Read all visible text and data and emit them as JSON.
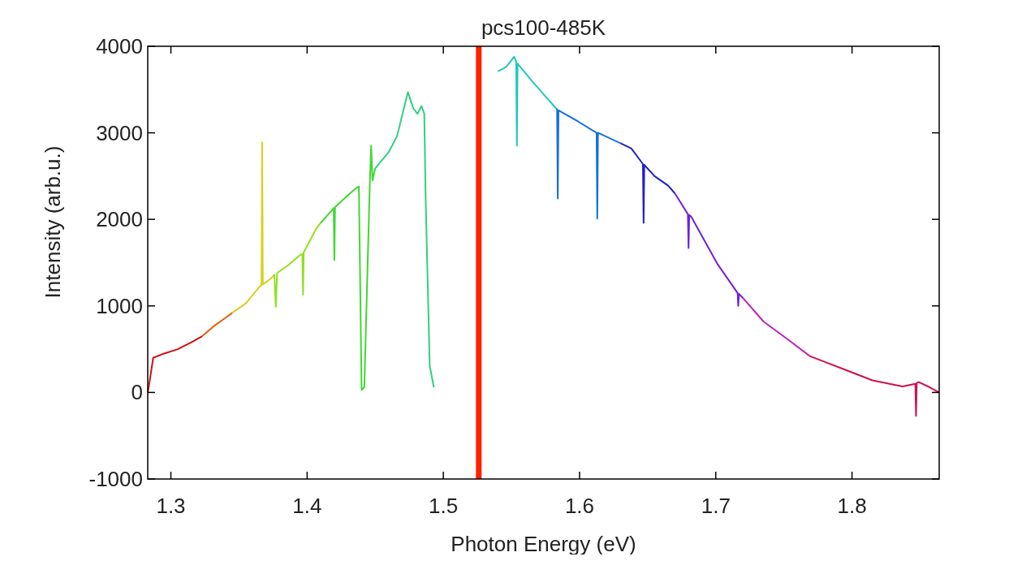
{
  "chart_data": {
    "type": "line",
    "title": "pcs100-485K",
    "xlabel": "Photon Energy (eV)",
    "ylabel": "Intensity (arb.u.)",
    "xlim": [
      1.283,
      1.864
    ],
    "xticks": [
      1.3,
      1.4,
      1.5,
      1.6,
      1.7,
      1.8
    ],
    "ylim": [
      -1000,
      4000
    ],
    "yticks": [
      -1000,
      0,
      1000,
      2000,
      3000,
      4000
    ],
    "grid": false,
    "marker": "none",
    "line_style": "solid",
    "ref_lines": [
      {
        "axis": "x",
        "value": 1.526,
        "color": "#ff2000"
      }
    ],
    "series": [
      {
        "color": "#d01010",
        "x": [
          1.283,
          1.284,
          1.287,
          1.295,
          1.305,
          1.315,
          1.323
        ],
        "values": [
          0,
          90,
          400,
          450,
          500,
          580,
          650
        ]
      },
      {
        "color": "#e06010",
        "x": [
          1.323,
          1.331,
          1.339,
          1.345
        ],
        "values": [
          650,
          760,
          850,
          920
        ]
      },
      {
        "color": "#d8d020",
        "x": [
          1.345,
          1.355,
          1.365,
          1.3665,
          1.367,
          1.3675,
          1.372,
          1.375
        ],
        "values": [
          920,
          1030,
          1220,
          1240,
          2890,
          1250,
          1300,
          1340
        ]
      },
      {
        "color": "#90e020",
        "x": [
          1.375,
          1.376,
          1.377,
          1.378,
          1.386,
          1.395,
          1.3965,
          1.397,
          1.3975,
          1.407,
          1.41
        ],
        "values": [
          1340,
          1360,
          990,
          1380,
          1470,
          1590,
          1600,
          1130,
          1620,
          1900,
          1960
        ]
      },
      {
        "color": "#40d830",
        "x": [
          1.41,
          1.419,
          1.4195,
          1.42,
          1.4205,
          1.428,
          1.435,
          1.438,
          1.44,
          1.442,
          1.446,
          1.447,
          1.448,
          1.45
        ],
        "values": [
          1960,
          2120,
          2130,
          1530,
          2140,
          2250,
          2350,
          2380,
          30,
          60,
          2400,
          2850,
          2450,
          2590
        ]
      },
      {
        "color": "#30d080",
        "x": [
          1.45,
          1.46,
          1.466,
          1.471,
          1.474,
          1.478,
          1.481,
          1.484,
          1.486,
          1.487,
          1.49,
          1.493
        ],
        "values": [
          2590,
          2780,
          2960,
          3280,
          3470,
          3280,
          3220,
          3310,
          3220,
          2250,
          310,
          60
        ]
      },
      {
        "color": "#20c8b8",
        "x": [
          1.54,
          1.546,
          1.552,
          1.5535,
          1.554,
          1.5545,
          1.565,
          1.575,
          1.583
        ],
        "values": [
          3710,
          3760,
          3880,
          3820,
          2850,
          3800,
          3600,
          3420,
          3280
        ]
      },
      {
        "color": "#1070e0",
        "x": [
          1.583,
          1.5835,
          1.584,
          1.5845,
          1.599,
          1.6125,
          1.613,
          1.6135,
          1.615,
          1.63
        ],
        "values": [
          3280,
          3270,
          2240,
          3260,
          3130,
          3000,
          2010,
          3000,
          2990,
          2880
        ]
      },
      {
        "color": "#2020c8",
        "x": [
          1.63,
          1.638,
          1.6465,
          1.647,
          1.6475,
          1.655,
          1.665,
          1.67
        ],
        "values": [
          2880,
          2820,
          2640,
          1960,
          2630,
          2500,
          2390,
          2300
        ]
      },
      {
        "color": "#7020d8",
        "x": [
          1.67,
          1.6795,
          1.68,
          1.6805,
          1.682,
          1.701,
          1.716,
          1.7165,
          1.717,
          1.72
        ],
        "values": [
          2300,
          2060,
          1670,
          2050,
          2030,
          1490,
          1150,
          1000,
          1140,
          1090
        ]
      },
      {
        "color": "#c020c0",
        "x": [
          1.72,
          1.735,
          1.754,
          1.769
        ],
        "values": [
          1090,
          820,
          600,
          420
        ]
      },
      {
        "color": "#d01050",
        "x": [
          1.769,
          1.792,
          1.815,
          1.837,
          1.8465,
          1.847,
          1.8475,
          1.849,
          1.857,
          1.864
        ],
        "values": [
          420,
          280,
          140,
          70,
          100,
          -270,
          110,
          120,
          60,
          0
        ]
      }
    ]
  }
}
